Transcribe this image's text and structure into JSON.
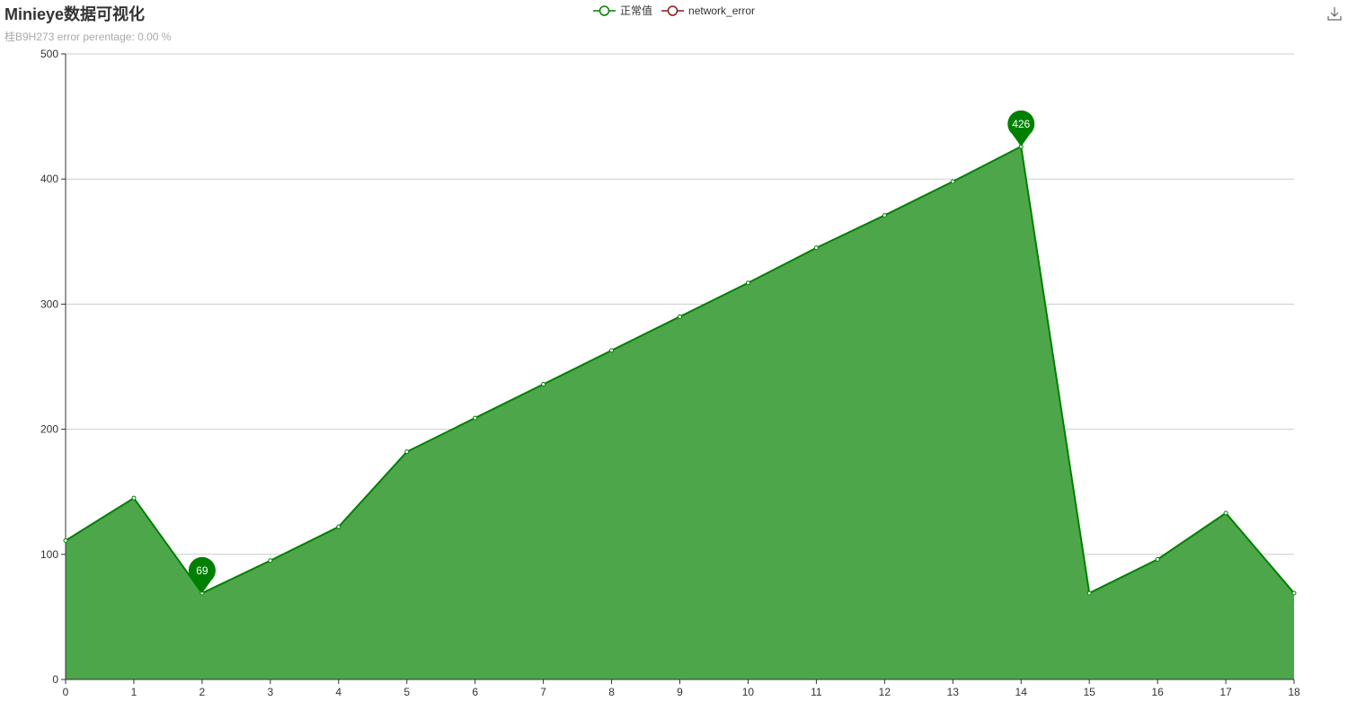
{
  "header": {
    "title": "Minieye数据可视化",
    "subtitle": "桂B9H273 error perentage: 0.00 %"
  },
  "legend": [
    {
      "label": "正常值",
      "color": "#008000"
    },
    {
      "label": "network_error",
      "color": "#8b1a1a"
    }
  ],
  "toolbox": {
    "download_icon": "download-icon"
  },
  "colors": {
    "series": "#008000",
    "area": "#4ea64a",
    "grid": "#cccccc",
    "axis": "#333333"
  },
  "chart_data": {
    "type": "area",
    "x": [
      0,
      1,
      2,
      3,
      4,
      5,
      6,
      7,
      8,
      9,
      10,
      11,
      12,
      13,
      14,
      15,
      16,
      17,
      18
    ],
    "series": [
      {
        "name": "正常值",
        "values": [
          111,
          145,
          69,
          95,
          122,
          182,
          209,
          236,
          263,
          290,
          317,
          345,
          371,
          398,
          426,
          69,
          96,
          133,
          69
        ]
      }
    ],
    "markers": [
      {
        "label": "69",
        "x": 2,
        "y": 69
      },
      {
        "label": "426",
        "x": 14,
        "y": 426
      }
    ],
    "ylim": [
      0,
      500
    ],
    "yticks": [
      0,
      100,
      200,
      300,
      400,
      500
    ],
    "grid": true,
    "legend_position": "top-center"
  }
}
